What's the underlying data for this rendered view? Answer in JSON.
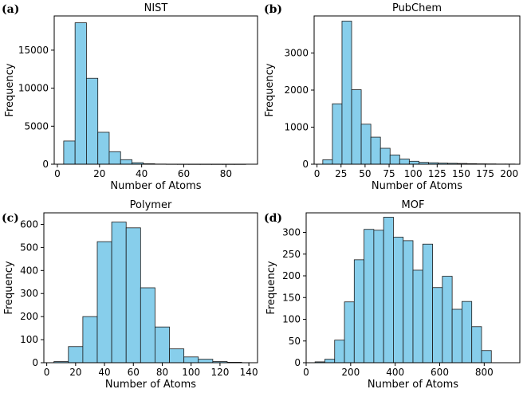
{
  "figure": {
    "panels": [
      {
        "letter": "(a)"
      },
      {
        "letter": "(b)"
      },
      {
        "letter": "(c)"
      },
      {
        "letter": "(d)"
      }
    ]
  },
  "colors": {
    "bar_fill": "#87ceeb",
    "bar_edge": "#1a1a1a",
    "axis": "#000000"
  },
  "chart_data": [
    {
      "type": "bar",
      "title": "NIST",
      "xlabel": "Number of Atoms",
      "ylabel": "Frequency",
      "xlim": [
        -1.5,
        95
      ],
      "ylim": [
        0,
        19500
      ],
      "xticks": [
        0,
        20,
        40,
        60,
        80
      ],
      "yticks": [
        0,
        5000,
        10000,
        15000
      ],
      "bin_edges": [
        3,
        8.4,
        13.8,
        19.2,
        24.6,
        30,
        35.4,
        40.8,
        46.2,
        51.6,
        57,
        62.4,
        67.8,
        73.2,
        78.6,
        84,
        89.4
      ],
      "values": [
        3050,
        18600,
        11300,
        4200,
        1650,
        600,
        200,
        60,
        20,
        10,
        5,
        3,
        2,
        1,
        1,
        1
      ]
    },
    {
      "type": "bar",
      "title": "PubChem",
      "xlabel": "Number of Atoms",
      "ylabel": "Frequency",
      "xlim": [
        -3,
        211
      ],
      "ylim": [
        0,
        4000
      ],
      "xticks": [
        0,
        25,
        50,
        75,
        100,
        125,
        150,
        175,
        200
      ],
      "yticks": [
        0,
        1000,
        2000,
        3000
      ],
      "bin_edges": [
        6,
        16,
        26,
        36,
        46,
        56,
        66,
        76,
        86,
        96,
        106,
        116,
        126,
        136,
        146,
        156,
        166,
        176,
        186,
        196,
        206
      ],
      "values": [
        120,
        1630,
        3860,
        2010,
        1080,
        730,
        430,
        250,
        140,
        80,
        50,
        40,
        30,
        25,
        20,
        15,
        10,
        8,
        5,
        5
      ]
    },
    {
      "type": "bar",
      "title": "Polymer",
      "xlabel": "Number of Atoms",
      "ylabel": "Frequency",
      "xlim": [
        -2,
        146
      ],
      "ylim": [
        0,
        650
      ],
      "xticks": [
        0,
        20,
        40,
        60,
        80,
        100,
        120,
        140
      ],
      "yticks": [
        0,
        100,
        200,
        300,
        400,
        500,
        600
      ],
      "bin_edges": [
        5,
        15,
        25,
        35,
        45,
        55,
        65,
        75,
        85,
        95,
        105,
        115,
        125,
        135
      ],
      "values": [
        5,
        70,
        200,
        525,
        610,
        585,
        325,
        155,
        60,
        25,
        15,
        5,
        2
      ]
    },
    {
      "type": "bar",
      "title": "MOF",
      "xlabel": "Number of Atoms",
      "ylabel": "Frequency",
      "xlim": [
        0,
        960
      ],
      "ylim": [
        0,
        345
      ],
      "xticks": [
        0,
        200,
        400,
        600,
        800
      ],
      "yticks": [
        0,
        50,
        100,
        150,
        200,
        250,
        300
      ],
      "bin_edges": [
        40,
        84,
        128,
        172,
        216,
        260,
        304,
        348,
        392,
        436,
        480,
        524,
        568,
        612,
        656,
        700,
        744,
        788,
        832,
        876,
        920
      ],
      "values": [
        2,
        8,
        52,
        140,
        237,
        307,
        305,
        335,
        289,
        281,
        213,
        273,
        173,
        199,
        123,
        141,
        83,
        28,
        0,
        0
      ]
    }
  ]
}
